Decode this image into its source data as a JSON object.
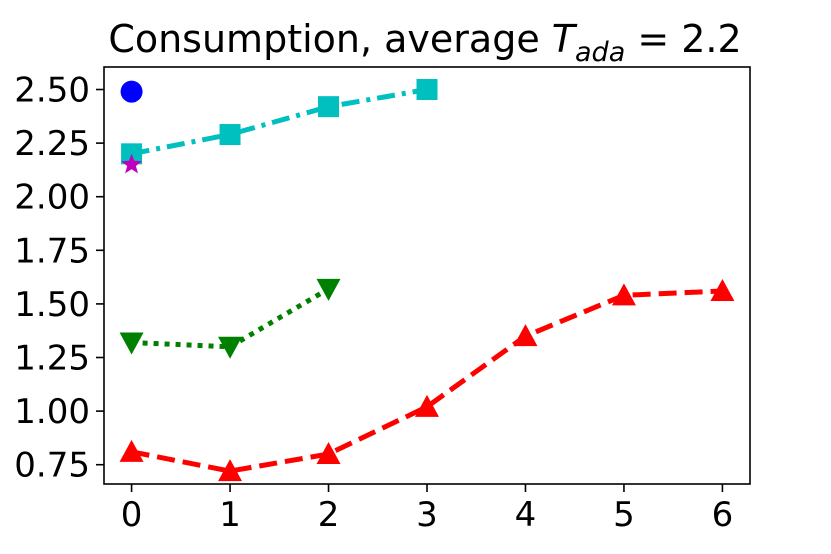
{
  "chart_data": {
    "type": "line",
    "title": {
      "prefix": "Consumption, average ",
      "symbol": "T",
      "subscript": "ada",
      "suffix": " = 2.2"
    },
    "xlabel": "",
    "ylabel": "",
    "xlim": [
      -0.28,
      6.28
    ],
    "ylim": [
      0.66,
      2.605
    ],
    "x_ticks": [
      0,
      1,
      2,
      3,
      4,
      5,
      6
    ],
    "y_ticks": [
      0.75,
      1.0,
      1.25,
      1.5,
      1.75,
      2.0,
      2.25,
      2.5
    ],
    "y_tick_labels": [
      "0.75",
      "1.00",
      "1.25",
      "1.50",
      "1.75",
      "2.00",
      "2.25",
      "2.50"
    ],
    "grid": false,
    "series": [
      {
        "name": "blue-circle",
        "color": "#0000ff",
        "marker": "circle",
        "linestyle": "none",
        "x": [
          0
        ],
        "y": [
          2.49
        ]
      },
      {
        "name": "cyan-square",
        "color": "#00bfbf",
        "marker": "square",
        "linestyle": "dashdot",
        "x": [
          0,
          1,
          2,
          3
        ],
        "y": [
          2.2,
          2.29,
          2.42,
          2.5
        ]
      },
      {
        "name": "magenta-star",
        "color": "#bf00bf",
        "marker": "star",
        "linestyle": "none",
        "x": [
          0
        ],
        "y": [
          2.15
        ]
      },
      {
        "name": "green-triangle-down",
        "color": "#008000",
        "marker": "triangle-down",
        "linestyle": "dotted",
        "x": [
          0,
          1,
          2
        ],
        "y": [
          1.32,
          1.3,
          1.57
        ]
      },
      {
        "name": "red-triangle-up",
        "color": "#ff0000",
        "marker": "triangle-up",
        "linestyle": "dashed",
        "x": [
          0,
          1,
          2,
          3,
          4,
          5,
          6
        ],
        "y": [
          0.81,
          0.72,
          0.8,
          1.02,
          1.35,
          1.54,
          1.56
        ]
      }
    ]
  }
}
